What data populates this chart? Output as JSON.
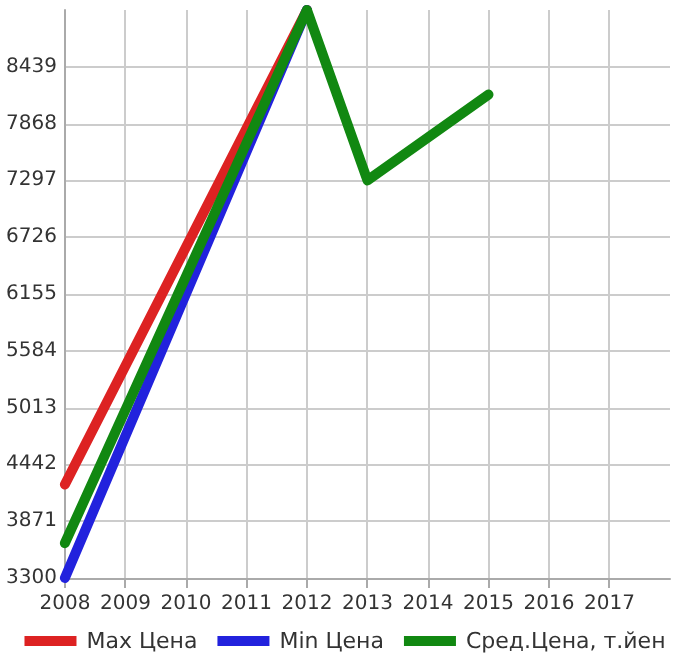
{
  "chart_data": {
    "type": "line",
    "xlim": [
      2008,
      2018
    ],
    "xticks": [
      2008,
      2009,
      2010,
      2011,
      2012,
      2013,
      2014,
      2015,
      2016,
      2017
    ],
    "ylim": [
      3300,
      9010
    ],
    "yticks": [
      3300,
      3871,
      4442,
      5013,
      5584,
      6155,
      6726,
      7297,
      7868,
      8439
    ],
    "grid": true,
    "legend": "bottom",
    "marker": "none",
    "line_style": "solid",
    "series": [
      {
        "name": "Max Цена",
        "color": "#dd2222",
        "x": [
          2008,
          2012
        ],
        "values": [
          4240,
          9010
        ]
      },
      {
        "name": "Min Цена",
        "color": "#2222dd",
        "x": [
          2008,
          2012
        ],
        "values": [
          3300,
          9010
        ]
      },
      {
        "name": "Сред.Цена, т.йен",
        "color": "#118811",
        "x": [
          2008,
          2012,
          2013,
          2015
        ],
        "values": [
          3650,
          9010,
          7297,
          8160
        ]
      }
    ]
  }
}
